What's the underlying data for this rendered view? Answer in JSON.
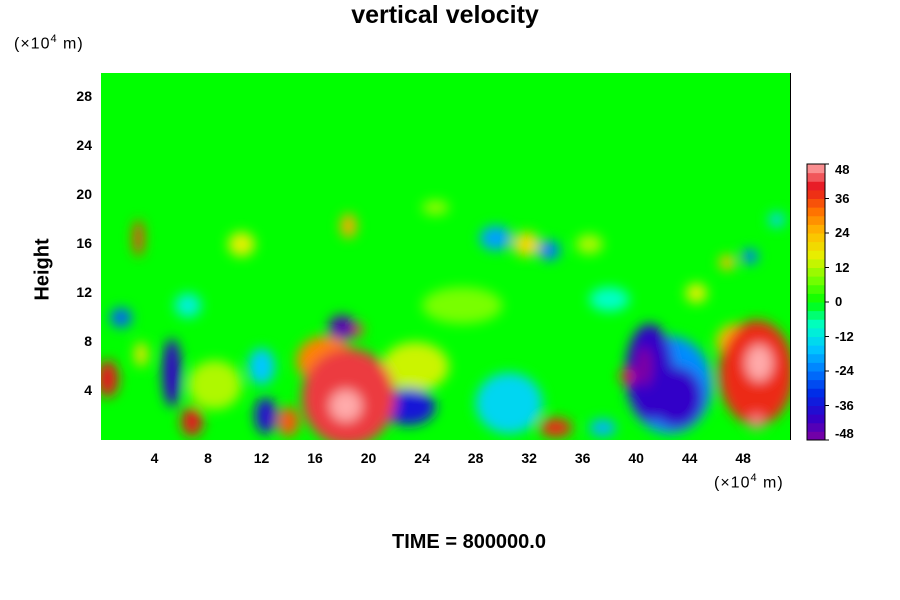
{
  "chart_data": {
    "type": "heatmap",
    "title": "vertical velocity",
    "ylabel": "Height",
    "x_unit": {
      "prefix": "(×10",
      "exp": "4",
      "suffix": " m)"
    },
    "y_unit": {
      "prefix": "(×10",
      "exp": "4",
      "suffix": " m)"
    },
    "xlim": [
      0,
      51.5
    ],
    "ylim": [
      0,
      30
    ],
    "x_ticks": [
      "4",
      "8",
      "12",
      "16",
      "20",
      "24",
      "28",
      "32",
      "36",
      "40",
      "44",
      "48"
    ],
    "y_ticks": [
      "4",
      "8",
      "12",
      "16",
      "20",
      "24",
      "28"
    ],
    "colorbar": {
      "range": [
        -48,
        48
      ],
      "ticks": [
        "48",
        "36",
        "24",
        "12",
        "0",
        "-12",
        "-24",
        "-36",
        "-48"
      ]
    },
    "background_value": 0,
    "features": [
      {
        "x": 18.5,
        "y": 3.5,
        "rx": 3.5,
        "ry": 4.0,
        "value": 42
      },
      {
        "x": 18.3,
        "y": 2.8,
        "rx": 1.2,
        "ry": 1.3,
        "value": 48
      },
      {
        "x": 16.8,
        "y": 6.5,
        "rx": 2.2,
        "ry": 2.0,
        "value": 30
      },
      {
        "x": 18.0,
        "y": 9.2,
        "rx": 1.0,
        "ry": 1.0,
        "value": -44
      },
      {
        "x": 19.0,
        "y": 9.0,
        "rx": 0.6,
        "ry": 0.6,
        "value": 36
      },
      {
        "x": 23.0,
        "y": 2.7,
        "rx": 2.0,
        "ry": 1.5,
        "value": -36
      },
      {
        "x": 23.5,
        "y": 6.0,
        "rx": 2.5,
        "ry": 2.0,
        "value": 14
      },
      {
        "x": 30.5,
        "y": 3.0,
        "rx": 2.5,
        "ry": 2.5,
        "value": -14
      },
      {
        "x": 41.0,
        "y": 5.5,
        "rx": 1.8,
        "ry": 4.0,
        "value": -40
      },
      {
        "x": 40.6,
        "y": 6.0,
        "rx": 0.6,
        "ry": 1.6,
        "value": -48
      },
      {
        "x": 43.0,
        "y": 3.5,
        "rx": 2.0,
        "ry": 2.5,
        "value": -40
      },
      {
        "x": 42.5,
        "y": 4.5,
        "rx": 3.2,
        "ry": 4.0,
        "value": -22
      },
      {
        "x": 49.0,
        "y": 5.5,
        "rx": 2.8,
        "ry": 4.3,
        "value": 38
      },
      {
        "x": 49.2,
        "y": 6.3,
        "rx": 1.0,
        "ry": 1.5,
        "value": 48
      },
      {
        "x": 49.0,
        "y": 1.5,
        "rx": 0.6,
        "ry": 0.6,
        "value": 46
      },
      {
        "x": 50.5,
        "y": 5.0,
        "rx": 0.7,
        "ry": 0.9,
        "value": 10
      },
      {
        "x": 47.5,
        "y": 8.0,
        "rx": 1.5,
        "ry": 1.5,
        "value": 24
      },
      {
        "x": 0.5,
        "y": 5.0,
        "rx": 0.8,
        "ry": 1.5,
        "value": 40
      },
      {
        "x": 5.3,
        "y": 5.5,
        "rx": 0.7,
        "ry": 2.8,
        "value": -40
      },
      {
        "x": 6.8,
        "y": 1.5,
        "rx": 0.8,
        "ry": 1.2,
        "value": 40
      },
      {
        "x": 8.5,
        "y": 4.5,
        "rx": 2.0,
        "ry": 2.0,
        "value": 12
      },
      {
        "x": 12.3,
        "y": 2.0,
        "rx": 0.8,
        "ry": 1.5,
        "value": -38
      },
      {
        "x": 14.0,
        "y": 1.5,
        "rx": 0.8,
        "ry": 1.2,
        "value": 34
      },
      {
        "x": 12.0,
        "y": 6.0,
        "rx": 1.0,
        "ry": 1.5,
        "value": -16
      },
      {
        "x": 2.8,
        "y": 16.5,
        "rx": 0.4,
        "ry": 1.5,
        "value": 36
      },
      {
        "x": 1.5,
        "y": 10.0,
        "rx": 0.8,
        "ry": 0.8,
        "value": -26
      },
      {
        "x": 3.0,
        "y": 7.0,
        "rx": 0.5,
        "ry": 1.0,
        "value": 18
      },
      {
        "x": 10.5,
        "y": 16.0,
        "rx": 1.0,
        "ry": 1.0,
        "value": 16
      },
      {
        "x": 18.5,
        "y": 17.5,
        "rx": 0.6,
        "ry": 1.0,
        "value": 26
      },
      {
        "x": 25.0,
        "y": 19.0,
        "rx": 1.0,
        "ry": 0.6,
        "value": 10
      },
      {
        "x": 29.5,
        "y": 16.5,
        "rx": 1.2,
        "ry": 1.0,
        "value": -20
      },
      {
        "x": 31.8,
        "y": 16.0,
        "rx": 1.0,
        "ry": 1.0,
        "value": 20
      },
      {
        "x": 33.5,
        "y": 15.5,
        "rx": 0.8,
        "ry": 0.8,
        "value": -24
      },
      {
        "x": 36.5,
        "y": 16.0,
        "rx": 1.0,
        "ry": 0.8,
        "value": 12
      },
      {
        "x": 46.8,
        "y": 14.5,
        "rx": 0.6,
        "ry": 0.6,
        "value": 24
      },
      {
        "x": 48.5,
        "y": 15.0,
        "rx": 0.6,
        "ry": 0.6,
        "value": -24
      },
      {
        "x": 50.5,
        "y": 18.0,
        "rx": 0.6,
        "ry": 0.6,
        "value": -14
      },
      {
        "x": 44.5,
        "y": 12.0,
        "rx": 0.8,
        "ry": 0.8,
        "value": 16
      },
      {
        "x": 34.0,
        "y": 1.0,
        "rx": 1.2,
        "ry": 0.8,
        "value": 38
      },
      {
        "x": 37.5,
        "y": 1.0,
        "rx": 1.0,
        "ry": 0.7,
        "value": -18
      },
      {
        "x": 39.3,
        "y": 5.2,
        "rx": 0.5,
        "ry": 0.6,
        "value": 40
      },
      {
        "x": 27.0,
        "y": 11.0,
        "rx": 3.0,
        "ry": 1.5,
        "value": 8
      },
      {
        "x": 6.5,
        "y": 11.0,
        "rx": 1.0,
        "ry": 1.0,
        "value": -10
      },
      {
        "x": 38.0,
        "y": 11.5,
        "rx": 1.5,
        "ry": 1.0,
        "value": -8
      }
    ],
    "time_label": "TIME = 800000.0"
  }
}
